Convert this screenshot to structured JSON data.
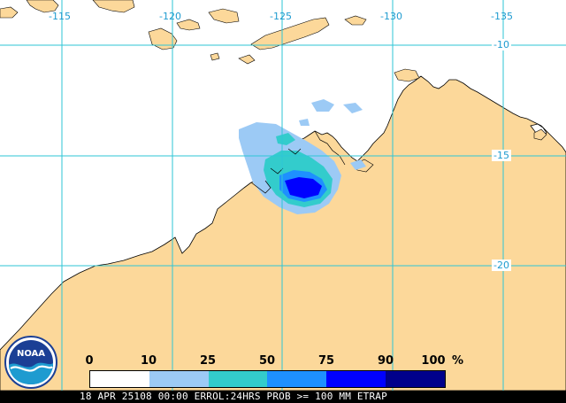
{
  "map": {
    "longitude_labels": [
      "-115",
      "-120",
      "-125",
      "-130",
      "-135"
    ],
    "latitude_labels": [
      "-10",
      "-15",
      "-20"
    ],
    "colors": {
      "ocean": "#ffffff",
      "land": "#fcd89a",
      "grid": "#2ec6d6",
      "coast": "#000000"
    }
  },
  "legend": {
    "ticks": [
      "0",
      "10",
      "25",
      "50",
      "75",
      "90",
      "100"
    ],
    "unit": "%",
    "colors": [
      "#ffffff",
      "#9ccaf5",
      "#33cccc",
      "#1e90ff",
      "#0000ff",
      "#00008b"
    ]
  },
  "footer": {
    "text": "18 APR 25108 00:00 ERROL:24HRS PROB >= 100 MM ETRAP"
  },
  "logo": {
    "text": "NOAA"
  },
  "icons": {
    "logo": "noaa-logo-icon"
  }
}
